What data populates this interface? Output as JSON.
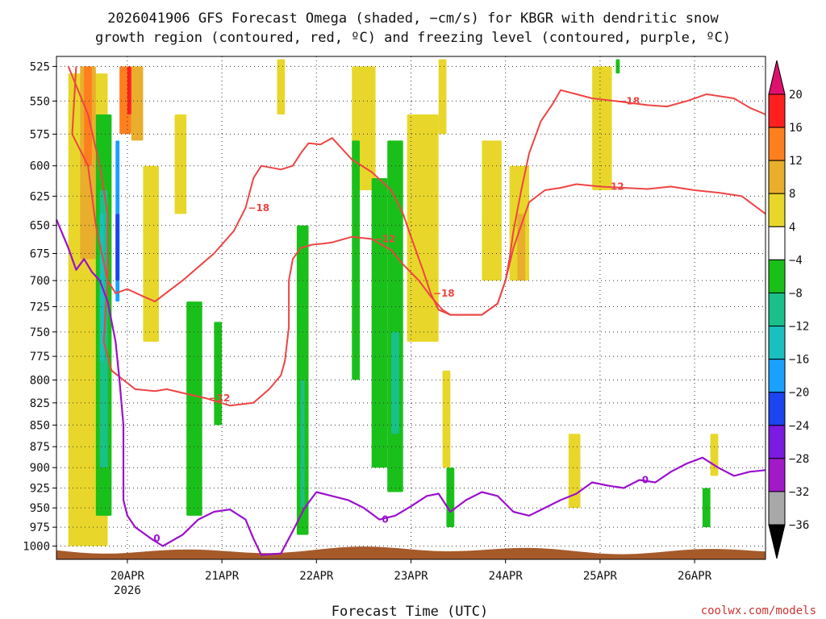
{
  "chart_data": {
    "type": "heatmap",
    "title_line1": "2026041906 GFS Forecast Omega (shaded, −cm/s) for KBGR with dendritic snow",
    "title_line2": "growth region (contoured, red, ºC) and freezing level (contoured, purple, ºC)",
    "xlabel": "Forecast Time (UTC)",
    "credit": "coolwx.com/models",
    "x_ticks": [
      {
        "label": "20APR",
        "sub": "2026",
        "hour": 18
      },
      {
        "label": "21APR",
        "sub": "",
        "hour": 42
      },
      {
        "label": "22APR",
        "sub": "",
        "hour": 66
      },
      {
        "label": "23APR",
        "sub": "",
        "hour": 90
      },
      {
        "label": "24APR",
        "sub": "",
        "hour": 114
      },
      {
        "label": "25APR",
        "sub": "",
        "hour": 138
      },
      {
        "label": "26APR",
        "sub": "",
        "hour": 162
      }
    ],
    "xlim_hours": [
      0,
      180
    ],
    "y_ticks": [
      525,
      550,
      575,
      600,
      625,
      650,
      675,
      700,
      725,
      750,
      775,
      800,
      825,
      850,
      875,
      900,
      925,
      950,
      975,
      1000
    ],
    "ylim_hpa": [
      1018,
      518
    ],
    "y_scale": "log-pressure (inverted)",
    "grid": true,
    "colorbar": {
      "labels": [
        "20",
        "16",
        "12",
        "8",
        "4",
        "−4",
        "−8",
        "−12",
        "−16",
        "−20",
        "−24",
        "−28",
        "−32",
        "−36"
      ],
      "colors": [
        "#ff1f1f",
        "#ff7f1f",
        "#e8ae2c",
        "#e8d72a",
        "#ffffff",
        "#1ac01a",
        "#19c08a",
        "#1ac0c0",
        "#1aa0ff",
        "#1a45f0",
        "#7b1ae0",
        "#a21ac8",
        "#a8a8a8"
      ],
      "top_arrow_color": "#e0116e",
      "bottom_arrow_color": "#000000"
    },
    "dgz_lines": [
      {
        "level": "−18",
        "color": "#ee4444",
        "points": [
          [
            5,
            525
          ],
          [
            4,
            575
          ],
          [
            8,
            600
          ],
          [
            10,
            650
          ],
          [
            13,
            700
          ],
          [
            15,
            712
          ],
          [
            18,
            708
          ],
          [
            22,
            715
          ],
          [
            25,
            720
          ],
          [
            32,
            700
          ],
          [
            40,
            675
          ],
          [
            45,
            655
          ],
          [
            48,
            635
          ],
          [
            50,
            610
          ],
          [
            52,
            600
          ],
          [
            57,
            603
          ],
          [
            60,
            600
          ],
          [
            62,
            590
          ],
          [
            64,
            582
          ],
          [
            67,
            583
          ],
          [
            70,
            578
          ],
          [
            75,
            595
          ],
          [
            80,
            605
          ],
          [
            85,
            620
          ],
          [
            88,
            640
          ],
          [
            90,
            660
          ],
          [
            93,
            690
          ],
          [
            95,
            712
          ],
          [
            97,
            728
          ],
          [
            100,
            733
          ],
          [
            108,
            733
          ],
          [
            112,
            722
          ],
          [
            114,
            700
          ],
          [
            115,
            680
          ],
          [
            116,
            655
          ],
          [
            118,
            620
          ],
          [
            120,
            590
          ],
          [
            123,
            565
          ],
          [
            126,
            552
          ],
          [
            128,
            542
          ],
          [
            132,
            545
          ],
          [
            136,
            548
          ],
          [
            142,
            550
          ],
          [
            150,
            553
          ],
          [
            155,
            554
          ],
          [
            160,
            550
          ],
          [
            165,
            545
          ],
          [
            172,
            548
          ],
          [
            176,
            555
          ],
          [
            180,
            560
          ]
        ]
      },
      {
        "level": "−12",
        "color": "#ee4444",
        "points": [
          [
            3,
            525
          ],
          [
            8,
            560
          ],
          [
            11,
            600
          ],
          [
            13,
            640
          ],
          [
            13,
            700
          ],
          [
            12,
            760
          ],
          [
            14,
            790
          ],
          [
            17,
            800
          ],
          [
            20,
            810
          ],
          [
            25,
            812
          ],
          [
            28,
            810
          ],
          [
            33,
            815
          ],
          [
            38,
            820
          ],
          [
            44,
            828
          ],
          [
            50,
            825
          ],
          [
            54,
            810
          ],
          [
            57,
            795
          ],
          [
            58,
            780
          ],
          [
            59,
            745
          ],
          [
            59,
            700
          ],
          [
            60,
            680
          ],
          [
            62,
            670
          ],
          [
            65,
            667
          ],
          [
            68,
            666
          ],
          [
            70,
            665
          ],
          [
            75,
            660
          ],
          [
            80,
            662
          ],
          [
            85,
            672
          ],
          [
            88,
            685
          ],
          [
            92,
            700
          ],
          [
            95,
            715
          ],
          [
            98,
            728
          ],
          [
            100,
            733
          ],
          [
            108,
            733
          ],
          [
            112,
            722
          ],
          [
            114,
            700
          ],
          [
            116,
            670
          ],
          [
            120,
            630
          ],
          [
            124,
            620
          ],
          [
            128,
            618
          ],
          [
            132,
            615
          ],
          [
            138,
            617
          ],
          [
            144,
            618
          ],
          [
            150,
            619
          ],
          [
            156,
            617
          ],
          [
            162,
            620
          ],
          [
            168,
            622
          ],
          [
            174,
            625
          ],
          [
            180,
            640
          ]
        ]
      }
    ],
    "freezing_line": {
      "level": "0",
      "color": "#9a11cc",
      "points": [
        [
          0,
          645
        ],
        [
          3,
          670
        ],
        [
          5,
          690
        ],
        [
          7,
          680
        ],
        [
          9,
          692
        ],
        [
          11,
          700
        ],
        [
          13,
          720
        ],
        [
          15,
          760
        ],
        [
          16,
          800
        ],
        [
          17,
          850
        ],
        [
          17,
          900
        ],
        [
          17,
          940
        ],
        [
          18,
          960
        ],
        [
          20,
          975
        ],
        [
          24,
          990
        ],
        [
          27,
          1000
        ],
        [
          32,
          985
        ],
        [
          36,
          965
        ],
        [
          40,
          955
        ],
        [
          44,
          952
        ],
        [
          48,
          965
        ],
        [
          50,
          990
        ],
        [
          52,
          1012
        ],
        [
          57,
          1010
        ],
        [
          60,
          980
        ],
        [
          63,
          950
        ],
        [
          66,
          930
        ],
        [
          70,
          935
        ],
        [
          74,
          940
        ],
        [
          78,
          950
        ],
        [
          82,
          965
        ],
        [
          86,
          960
        ],
        [
          90,
          948
        ],
        [
          94,
          935
        ],
        [
          97,
          932
        ],
        [
          100,
          955
        ],
        [
          104,
          940
        ],
        [
          108,
          930
        ],
        [
          112,
          935
        ],
        [
          116,
          955
        ],
        [
          120,
          960
        ],
        [
          124,
          950
        ],
        [
          128,
          940
        ],
        [
          132,
          932
        ],
        [
          136,
          918
        ],
        [
          140,
          922
        ],
        [
          144,
          925
        ],
        [
          148,
          915
        ],
        [
          152,
          918
        ],
        [
          156,
          905
        ],
        [
          160,
          895
        ],
        [
          164,
          888
        ],
        [
          168,
          900
        ],
        [
          172,
          910
        ],
        [
          176,
          905
        ],
        [
          180,
          903
        ]
      ]
    },
    "omega_patches": [
      {
        "band": "4",
        "x0": 3,
        "x1": 13,
        "p0": 530,
        "p1": 1000
      },
      {
        "band": "4",
        "x0": 22,
        "x1": 26,
        "p0": 600,
        "p1": 760
      },
      {
        "band": "4",
        "x0": 30,
        "x1": 33,
        "p0": 560,
        "p1": 640
      },
      {
        "band": "4",
        "x0": 56,
        "x1": 58,
        "p0": 520,
        "p1": 560
      },
      {
        "band": "4",
        "x0": 75,
        "x1": 81,
        "p0": 525,
        "p1": 620
      },
      {
        "band": "4",
        "x0": 89,
        "x1": 97,
        "p0": 560,
        "p1": 760
      },
      {
        "band": "4",
        "x0": 97,
        "x1": 99,
        "p0": 520,
        "p1": 575
      },
      {
        "band": "4",
        "x0": 108,
        "x1": 113,
        "p0": 580,
        "p1": 700
      },
      {
        "band": "4",
        "x0": 115,
        "x1": 120,
        "p0": 600,
        "p1": 700
      },
      {
        "band": "4",
        "x0": 136,
        "x1": 141,
        "p0": 525,
        "p1": 620
      },
      {
        "band": "4",
        "x0": 98,
        "x1": 100,
        "p0": 790,
        "p1": 900
      },
      {
        "band": "4",
        "x0": 130,
        "x1": 133,
        "p0": 860,
        "p1": 950
      },
      {
        "band": "4",
        "x0": 166,
        "x1": 168,
        "p0": 860,
        "p1": 910
      },
      {
        "band": "8",
        "x0": 6,
        "x1": 10,
        "p0": 525,
        "p1": 680
      },
      {
        "band": "8",
        "x0": 19,
        "x1": 22,
        "p0": 525,
        "p1": 580
      },
      {
        "band": "8",
        "x0": 117,
        "x1": 119,
        "p0": 640,
        "p1": 700
      },
      {
        "band": "12",
        "x0": 7,
        "x1": 9,
        "p0": 525,
        "p1": 600
      },
      {
        "band": "12",
        "x0": 16,
        "x1": 19,
        "p0": 525,
        "p1": 575
      },
      {
        "band": "16",
        "x0": 18,
        "x1": 19,
        "p0": 525,
        "p1": 560
      },
      {
        "band": "-4",
        "x0": 10,
        "x1": 14,
        "p0": 560,
        "p1": 960
      },
      {
        "band": "-4",
        "x0": 33,
        "x1": 37,
        "p0": 720,
        "p1": 960
      },
      {
        "band": "-4",
        "x0": 40,
        "x1": 42,
        "p0": 740,
        "p1": 850
      },
      {
        "band": "-4",
        "x0": 61,
        "x1": 64,
        "p0": 650,
        "p1": 985
      },
      {
        "band": "-4",
        "x0": 75,
        "x1": 77,
        "p0": 580,
        "p1": 800
      },
      {
        "band": "-4",
        "x0": 80,
        "x1": 84,
        "p0": 610,
        "p1": 900
      },
      {
        "band": "-4",
        "x0": 84,
        "x1": 88,
        "p0": 580,
        "p1": 930
      },
      {
        "band": "-4",
        "x0": 99,
        "x1": 101,
        "p0": 900,
        "p1": 975
      },
      {
        "band": "-4",
        "x0": 164,
        "x1": 166,
        "p0": 925,
        "p1": 975
      },
      {
        "band": "-4",
        "x0": 142,
        "x1": 143,
        "p0": 520,
        "p1": 530
      },
      {
        "band": "-8",
        "x0": 11,
        "x1": 13,
        "p0": 620,
        "p1": 900
      },
      {
        "band": "-8",
        "x0": 62,
        "x1": 63,
        "p0": 800,
        "p1": 950
      },
      {
        "band": "-8",
        "x0": 85,
        "x1": 87,
        "p0": 750,
        "p1": 860
      },
      {
        "band": "-12",
        "x0": 11,
        "x1": 12,
        "p0": 640,
        "p1": 780
      },
      {
        "band": "-16",
        "x0": 15,
        "x1": 16,
        "p0": 580,
        "p1": 720
      },
      {
        "band": "-20",
        "x0": 15,
        "x1": 16,
        "p0": 640,
        "p1": 700
      }
    ],
    "terrain": {
      "color": "#a65a2a",
      "surface_hpa": 1010
    }
  }
}
